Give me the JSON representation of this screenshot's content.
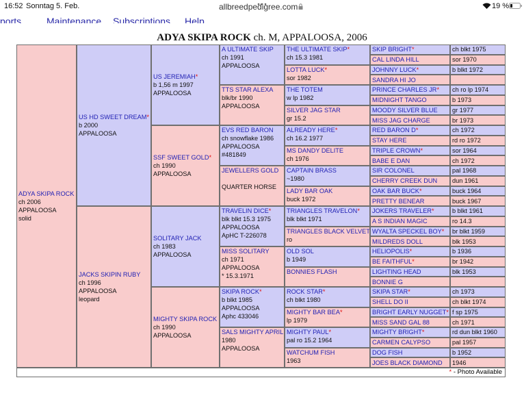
{
  "status_bar": {
    "time": "16:52",
    "date": "Sonntag 5. Feb.",
    "url": "allbreedpedigree.com",
    "battery": "19 %"
  },
  "nav": [
    "ports",
    "Maintenance",
    "Subscriptions",
    "Help"
  ],
  "title": {
    "name": "ADYA SKIPA ROCK",
    "details": "ch. M, APPALOOSA, 2006"
  },
  "pedigree": {
    "generations": [
      [
        {
          "name": "ADYA SKIPA ROCK",
          "lines": [
            "ch 2006",
            "APPALOOSA",
            "solid"
          ]
        }
      ],
      [
        {
          "name": "US HD SWEET DREAM",
          "mark": "*",
          "lines": [
            "b 2000",
            "APPALOOSA"
          ]
        },
        {
          "name": "JACKS SKIPIN RUBY",
          "lines": [
            "ch 1996",
            "APPALOOSA",
            "leopard"
          ]
        }
      ],
      [
        {
          "name": "US JEREMIAH",
          "mark": "*",
          "lines": [
            "b 1,56 m 1997",
            "APPALOOSA"
          ]
        },
        {
          "name": "SSF SWEET GOLD",
          "mark": "*",
          "lines": [
            "ch 1990",
            "APPALOOSA"
          ]
        },
        {
          "name": "SOLITARY JACK",
          "lines": [
            "ch 1983",
            "APPALOOSA"
          ]
        },
        {
          "name": "MIGHTY SKIPA ROCK",
          "lines": [
            "ch 1990",
            "APPALOOSA"
          ]
        }
      ],
      [
        {
          "name": "A ULTIMATE SKIP",
          "lines": [
            "ch 1991",
            "APPALOOSA"
          ]
        },
        {
          "name": "TTS STAR ALEXA",
          "lines": [
            "blk/br 1990",
            "APPALOOSA"
          ]
        },
        {
          "name": "EVS RED BARON",
          "lines": [
            "ch snowflake 1986",
            "APPALOOSA",
            "#481849"
          ]
        },
        {
          "name": "JEWELLERS GOLD",
          "lines": [
            "QUARTER HORSE"
          ]
        },
        {
          "name": "TRAVELIN DICE",
          "mark": "*",
          "lines": [
            "blk blkt 15.3 1975",
            "APPALOOSA",
            "ApHC T-226078"
          ]
        },
        {
          "name": "MISS SOLITARY",
          "lines": [
            "ch 1971",
            "APPALOOSA",
            "* 15.3.1971"
          ]
        },
        {
          "name": "SKIPA ROCK",
          "mark": "*",
          "lines": [
            "b blkt 1985",
            "APPALOOSA",
            "Aphc 433046"
          ]
        },
        {
          "name": "SALS MIGHTY APRIL",
          "lines": [
            "1980",
            "APPALOOSA"
          ]
        }
      ],
      [
        {
          "name": "THE ULTIMATE SKIP",
          "mark": "*",
          "lines": [
            "ch 15.3 1981"
          ]
        },
        {
          "name": "LOTTA LUCK",
          "mark": "*",
          "lines": [
            "sor 1982"
          ]
        },
        {
          "name": "THE TOTEM",
          "lines": [
            "w lp 1982"
          ]
        },
        {
          "name": "SILVER JAG STAR",
          "lines": [
            "gr 15.2"
          ]
        },
        {
          "name": "ALREADY HERE",
          "mark": "*",
          "lines": [
            "ch 16.2 1977"
          ]
        },
        {
          "name": "MS DANDY DELITE",
          "lines": [
            "ch 1976"
          ]
        },
        {
          "name": "CAPTAIN BRASS",
          "lines": [
            "~1980"
          ]
        },
        {
          "name": "LADY BAR OAK",
          "lines": [
            "buck 1972"
          ]
        },
        {
          "name": "TRIANGLES TRAVELON",
          "mark": "*",
          "lines": [
            "blk blkt 1971"
          ]
        },
        {
          "name": "TRIANGLES BLACK VELVET",
          "lines": [
            "ro"
          ]
        },
        {
          "name": "OLD SOL",
          "lines": [
            "b 1949"
          ]
        },
        {
          "name": "BONNIES FLASH",
          "lines": []
        },
        {
          "name": "ROCK STAR",
          "mark": "*",
          "lines": [
            "ch blkt 1980"
          ]
        },
        {
          "name": "MIGHTY BAR BEA",
          "mark": "*",
          "lines": [
            "lp 1979"
          ]
        },
        {
          "name": "MIGHTY PAUL",
          "mark": "*",
          "lines": [
            "pal ro 15.2 1964"
          ]
        },
        {
          "name": "WATCHUM FISH",
          "lines": [
            "1963"
          ]
        }
      ],
      [
        {
          "name": "SKIP BRIGHT",
          "mark": "*",
          "lines": [
            "ch blkt 1975"
          ]
        },
        {
          "name": "CAL LINDA HILL",
          "lines": [
            "sor 1970"
          ]
        },
        {
          "name": "JOHNNY LUCK",
          "mark": "*",
          "lines": [
            "b blkt 1972"
          ]
        },
        {
          "name": "SANDRA HI JO",
          "lines": []
        },
        {
          "name": "PRINCE CHARLES JR",
          "mark": "*",
          "lines": [
            "ch ro lp 1974"
          ]
        },
        {
          "name": "MIDNIGHT TANGO",
          "lines": [
            "b 1973"
          ]
        },
        {
          "name": "MOODY SILVER BLUE",
          "lines": [
            "gr 1977"
          ]
        },
        {
          "name": "MISS JAG CHARGE",
          "lines": [
            "br 1973"
          ]
        },
        {
          "name": "RED BARON D",
          "mark": "*",
          "lines": [
            "ch 1972"
          ]
        },
        {
          "name": "STAY HERE",
          "lines": [
            "rd ro 1972"
          ]
        },
        {
          "name": "TRIPLE CROWN",
          "mark": "*",
          "lines": [
            "sor 1964"
          ]
        },
        {
          "name": "BABE E DAN",
          "lines": [
            "ch 1972"
          ]
        },
        {
          "name": "SIR COLONEL",
          "lines": [
            "pal 1968"
          ]
        },
        {
          "name": "CHERRY CREEK DUN",
          "lines": [
            "dun 1961"
          ]
        },
        {
          "name": "OAK BAR BUCK",
          "mark": "*",
          "lines": [
            "buck 1964"
          ]
        },
        {
          "name": "PRETTY BENEAR",
          "lines": [
            "buck 1967"
          ]
        },
        {
          "name": "JOKERS TRAVELER",
          "mark": "*",
          "lines": [
            "b blkt 1961"
          ]
        },
        {
          "name": "A S INDIAN MAGIC",
          "lines": [
            "ro 14.3"
          ]
        },
        {
          "name": "WYALTA SPECKEL BOY",
          "mark": "*",
          "lines": [
            "br blkt 1959"
          ]
        },
        {
          "name": "MILDREDS DOLL",
          "lines": [
            "blk 1953"
          ]
        },
        {
          "name": "HELIOPOLIS",
          "mark": "*",
          "lines": [
            "b 1936"
          ]
        },
        {
          "name": "BE FAITHFUL",
          "mark": "*",
          "lines": [
            "br 1942"
          ]
        },
        {
          "name": "LIGHTING HEAD",
          "lines": [
            "blk 1953"
          ]
        },
        {
          "name": "BONNIE G",
          "lines": []
        },
        {
          "name": "SKIPA STAR",
          "mark": "*",
          "lines": [
            "ch 1973"
          ]
        },
        {
          "name": "SHELL DO II",
          "lines": [
            "ch blkt 1974"
          ]
        },
        {
          "name": "BRIGHT EARLY NUGGET",
          "mark": "*",
          "lines": [
            "f sp 1975"
          ]
        },
        {
          "name": "MISS SAND GAL 88",
          "lines": [
            "ch 1971"
          ]
        },
        {
          "name": "MIGHTY BRIGHT",
          "mark": "*",
          "lines": [
            "rd dun blkt 1960"
          ]
        },
        {
          "name": "CARMEN CALYPSO",
          "lines": [
            "pal 1957"
          ]
        },
        {
          "name": "DOG FISH",
          "lines": [
            "b 1952"
          ]
        },
        {
          "name": "JOES BLACK DIAMOND",
          "lines": [
            "1946"
          ]
        }
      ]
    ]
  },
  "footer": {
    "mark": "*",
    "text": "- Photo Available"
  }
}
